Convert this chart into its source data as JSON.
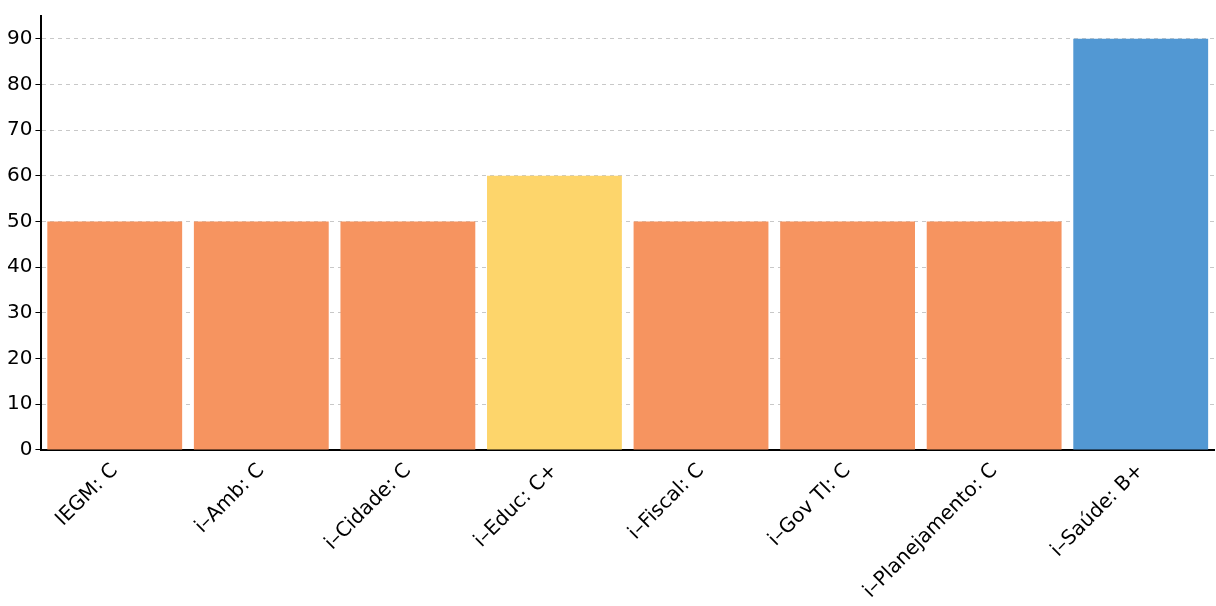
{
  "chart_data": {
    "type": "bar",
    "categories": [
      "IEGM: C",
      "i–Amb: C",
      "i–Cidade: C",
      "i–Educ: C+",
      "i–Fiscal: C",
      "i–Gov TI: C",
      "i–Planejamento: C",
      "i–Saúde: B+"
    ],
    "values": [
      50,
      50,
      50,
      60,
      50,
      50,
      50,
      90
    ],
    "colors": [
      "#f69460",
      "#f69460",
      "#f69460",
      "#fdd56b",
      "#f69460",
      "#f69460",
      "#f69460",
      "#5298d3"
    ],
    "ylim": [
      0,
      95
    ],
    "yticks": [
      0,
      10,
      20,
      30,
      40,
      50,
      60,
      70,
      80,
      90
    ],
    "grid": "y"
  }
}
